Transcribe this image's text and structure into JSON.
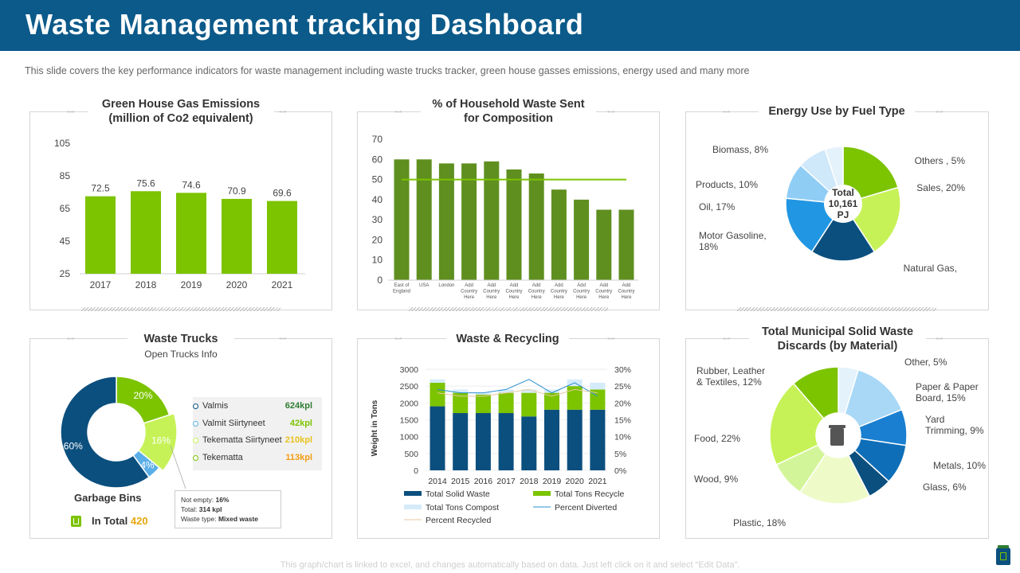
{
  "header": {
    "title": "Waste Management tracking Dashboard"
  },
  "subtitle": "This slide covers the key performance  indicators for waste management  including waste trucks tracker, green house gasses emissions, energy used and many more",
  "footer": "This graph/chart is linked to excel, and changes automatically based on data. Just left click on it and select “Edit Data”.",
  "colors": {
    "header": "#0b5a8a",
    "lime": "#7cc300",
    "olive": "#5f8f1f",
    "navy": "#0b4f7e",
    "blue": "#2196e3",
    "lightblue": "#cfe8fa"
  },
  "chart_data": [
    {
      "id": "ghg",
      "type": "bar",
      "title_line1": "Green House Gas Emissions",
      "title_line2": "(million of Co2 equivalent)",
      "categories": [
        "2017",
        "2018",
        "2019",
        "2020",
        "2021"
      ],
      "values": [
        72.5,
        75.6,
        74.6,
        70.9,
        69.6
      ],
      "value_labels": [
        "72.5",
        "75.6",
        "74.6",
        "70.9",
        "69.6"
      ],
      "ylim": [
        25,
        105
      ],
      "yticks": [
        "105",
        "85",
        "65",
        "45",
        "25"
      ],
      "color": "#7cc300"
    },
    {
      "id": "household",
      "type": "bar",
      "title_line1": "% of Household Waste Sent",
      "title_line2": "for Composition",
      "categories": [
        [
          "East of",
          "England"
        ],
        [
          "USA"
        ],
        [
          "London"
        ],
        [
          "Add",
          "Country",
          "Here"
        ],
        [
          "Add",
          "Country",
          "Here"
        ],
        [
          "Add",
          "Country",
          "Here"
        ],
        [
          "Add",
          "Country",
          "Here"
        ],
        [
          "Add",
          "Country",
          "Here"
        ],
        [
          "Add",
          "Country",
          "Here"
        ],
        [
          "Add",
          "Country",
          "Here"
        ],
        [
          "Add",
          "Country",
          "Here"
        ]
      ],
      "values": [
        60,
        60,
        58,
        58,
        59,
        55,
        53,
        45,
        40,
        35,
        35
      ],
      "target": 50,
      "ylim": [
        0,
        70
      ],
      "yticks": [
        "70",
        "60",
        "50",
        "40",
        "30",
        "20",
        "10",
        "0"
      ],
      "color": "#5f8f1f",
      "target_color": "#7cc300"
    },
    {
      "id": "energy",
      "type": "pie",
      "title": "Energy Use by Fuel Type",
      "center_lines": [
        "Total",
        "10,161",
        "PJ"
      ],
      "slices": [
        {
          "label": "Sales, 20%",
          "value": 20,
          "color": "#7cc300"
        },
        {
          "label": "Natural Gas,",
          "value": 20,
          "color": "#c6f257"
        },
        {
          "label": "Motor Gasoline, 18%",
          "value": 18,
          "color": "#0b4f7e"
        },
        {
          "label": "Oil, 17%",
          "value": 17,
          "color": "#2196e3"
        },
        {
          "label": "Products, 10%",
          "value": 10,
          "color": "#8fcdf5"
        },
        {
          "label": "Biomass, 8%",
          "value": 8,
          "color": "#cfe8fa"
        },
        {
          "label": "Others , 5%",
          "value": 5,
          "color": "#e4f2fc"
        }
      ]
    },
    {
      "id": "trucks",
      "type": "pie",
      "title": "Waste Trucks",
      "subtitle": "Open Trucks Info",
      "slices": [
        {
          "label": "20%",
          "value": 20,
          "color": "#7cc300"
        },
        {
          "label": "16%",
          "value": 16,
          "color": "#c6f257"
        },
        {
          "label": "4%",
          "value": 4,
          "color": "#5aaee8"
        },
        {
          "label": "60%",
          "value": 60,
          "color": "#0b4f7e"
        }
      ],
      "legend": [
        {
          "name": "Valmis",
          "value": "624kpl",
          "color": "#0b4f7e"
        },
        {
          "name": "Valmit Siirtyneet",
          "value": "42kpl",
          "color": "#5aaee8"
        },
        {
          "name": "Tekematta  Siirtyneet",
          "value": "210kpl",
          "color": "#c6f257"
        },
        {
          "name": "Tekematta",
          "value": "113kpl",
          "color": "#7cc300"
        }
      ],
      "legend_value_colors": [
        "#2e7d32",
        "#7cc300",
        "#e8c21a",
        "#f39c12"
      ],
      "tooltip": {
        "line1_label": "Not empty: ",
        "line1_value": "16%",
        "line2_label": "Total: ",
        "line2_value": "314",
        "line2_unit": " kpl",
        "line3_label": "Waste type: ",
        "line3_value": "Mixed waste"
      },
      "bins_label": "Garbage Bins",
      "total_label": "In Total ",
      "total_value": "420"
    },
    {
      "id": "recycling",
      "type": "bar",
      "title": "Waste & Recycling",
      "ylabel": "Weight in Tons",
      "categories": [
        "2014",
        "2015",
        "2016",
        "2017",
        "2018",
        "2019",
        "2020",
        "2021"
      ],
      "series": [
        {
          "name": "Total Solid Waste",
          "values": [
            1900,
            1700,
            1700,
            1700,
            1600,
            1800,
            1800,
            1800
          ],
          "color": "#0b4f7e"
        },
        {
          "name": "Total Tons Recycle",
          "values": [
            700,
            600,
            550,
            600,
            700,
            500,
            700,
            600
          ],
          "color": "#7cc300"
        },
        {
          "name": "Total Tons Compost",
          "values": [
            100,
            100,
            50,
            100,
            100,
            100,
            200,
            200
          ],
          "color": "#d5ebfa"
        }
      ],
      "lines": [
        {
          "name": "Percent Diverted",
          "values": [
            24,
            23,
            23,
            24,
            27,
            23,
            26,
            22
          ],
          "color": "#2a8fd0"
        },
        {
          "name": "Percent Recycled",
          "values": [
            23,
            22,
            22,
            23,
            24,
            22,
            24,
            23
          ],
          "color": "#e8c9a0"
        }
      ],
      "ylim": [
        0,
        3000
      ],
      "yticks": [
        "3000",
        "2500",
        "2000",
        "1500",
        "1000",
        "500",
        "0"
      ],
      "y2lim": [
        0,
        30
      ],
      "y2ticks": [
        "30%",
        "25%",
        "20%",
        "15%",
        "10%",
        "5%",
        "0%"
      ]
    },
    {
      "id": "msw",
      "type": "pie",
      "title_line1": "Total Municipal Solid Waste",
      "title_line2": "Discards (by Material)",
      "slices": [
        {
          "label": "Other, 5%",
          "value": 5,
          "color": "#e4f2fc"
        },
        {
          "label": "Paper & Paper Board, 15%",
          "value": 15,
          "color": "#a9d8f7"
        },
        {
          "label": "Yard Trimming, 9%",
          "value": 9,
          "color": "#1a7fd0"
        },
        {
          "label": "Metals, 10%",
          "value": 10,
          "color": "#0e6eb8"
        },
        {
          "label": "Glass, 6%",
          "value": 6,
          "color": "#0b4f7e"
        },
        {
          "label": "Plastic, 18%",
          "value": 18,
          "color": "#eefbc8"
        },
        {
          "label": "Wood, 9%",
          "value": 9,
          "color": "#d3f59a"
        },
        {
          "label": "Food, 22%",
          "value": 22,
          "color": "#c6f257"
        },
        {
          "label": "Rubber, Leather & Textiles, 12%",
          "value": 12,
          "color": "#7cc300"
        }
      ]
    }
  ]
}
